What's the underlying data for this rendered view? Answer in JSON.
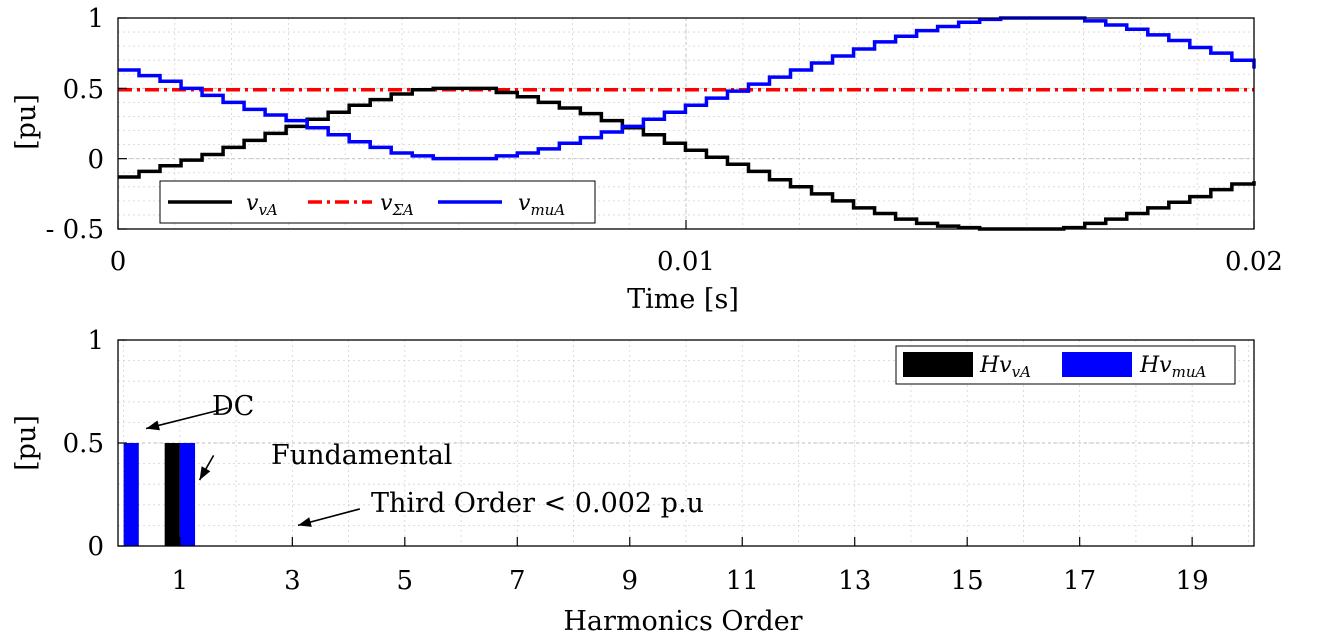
{
  "chart_data": [
    {
      "type": "line",
      "xlabel": "Time [s]",
      "ylabel": "[pu]",
      "xlim": [
        0,
        0.02
      ],
      "ylim": [
        -0.5,
        1
      ],
      "xticks": [
        0,
        0.01,
        0.02
      ],
      "xtick_labels": [
        "0",
        "0.01",
        "0.02"
      ],
      "yticks": [
        -0.5,
        0,
        0.5,
        1
      ],
      "ytick_labels": [
        "- 0.5",
        "0",
        "0.5",
        "1"
      ],
      "grid": true,
      "legend_position": "bottom-left",
      "series": [
        {
          "name": "v_vA",
          "legend_main": "v",
          "legend_sub": "vA",
          "color": "#000000",
          "style": "solid",
          "x": [
            0,
            0.00037,
            0.00074,
            0.00111,
            0.00148,
            0.00185,
            0.00222,
            0.00259,
            0.00296,
            0.00333,
            0.0037,
            0.00407,
            0.00444,
            0.00481,
            0.00518,
            0.00555,
            0.00592,
            0.00629,
            0.00666,
            0.00703,
            0.0074,
            0.00777,
            0.00814,
            0.00851,
            0.00888,
            0.00925,
            0.00962,
            0.00999,
            0.01036,
            0.01073,
            0.0111,
            0.01147,
            0.01184,
            0.01221,
            0.01258,
            0.01295,
            0.01332,
            0.01369,
            0.01406,
            0.01443,
            0.0148,
            0.01517,
            0.01554,
            0.01591,
            0.01628,
            0.01665,
            0.01702,
            0.01739,
            0.01776,
            0.01813,
            0.0185,
            0.01887,
            0.01924,
            0.01961,
            0.02
          ],
          "y": [
            -0.13,
            -0.09,
            -0.05,
            -0.01,
            0.03,
            0.08,
            0.13,
            0.18,
            0.23,
            0.28,
            0.33,
            0.38,
            0.42,
            0.46,
            0.49,
            0.5,
            0.5,
            0.5,
            0.47,
            0.44,
            0.4,
            0.36,
            0.32,
            0.27,
            0.22,
            0.17,
            0.11,
            0.06,
            0.01,
            -0.04,
            -0.09,
            -0.15,
            -0.2,
            -0.25,
            -0.3,
            -0.35,
            -0.39,
            -0.43,
            -0.46,
            -0.48,
            -0.49,
            -0.5,
            -0.5,
            -0.5,
            -0.5,
            -0.49,
            -0.46,
            -0.43,
            -0.39,
            -0.35,
            -0.31,
            -0.27,
            -0.22,
            -0.18,
            -0.16
          ]
        },
        {
          "name": "v_ΣA",
          "legend_main": "v",
          "legend_sub": "ΣA",
          "color": "#ff0000",
          "style": "dashdot",
          "x": [
            0,
            0.02
          ],
          "y": [
            0.49,
            0.49
          ]
        },
        {
          "name": "v_muA",
          "legend_main": "v",
          "legend_sub": "muA",
          "color": "#0000ff",
          "style": "solid",
          "x": [
            0,
            0.00037,
            0.00074,
            0.00111,
            0.00148,
            0.00185,
            0.00222,
            0.00259,
            0.00296,
            0.00333,
            0.0037,
            0.00407,
            0.00444,
            0.00481,
            0.00518,
            0.00555,
            0.00592,
            0.00629,
            0.00666,
            0.00703,
            0.0074,
            0.00777,
            0.00814,
            0.00851,
            0.00888,
            0.00925,
            0.00962,
            0.00999,
            0.01036,
            0.01073,
            0.0111,
            0.01147,
            0.01184,
            0.01221,
            0.01258,
            0.01295,
            0.01332,
            0.01369,
            0.01406,
            0.01443,
            0.0148,
            0.01517,
            0.01554,
            0.01591,
            0.01628,
            0.01665,
            0.01702,
            0.01739,
            0.01776,
            0.01813,
            0.0185,
            0.01887,
            0.01924,
            0.01961,
            0.02
          ],
          "y": [
            0.63,
            0.59,
            0.55,
            0.5,
            0.45,
            0.4,
            0.35,
            0.31,
            0.27,
            0.22,
            0.17,
            0.12,
            0.08,
            0.04,
            0.02,
            0.0,
            0.0,
            0.0,
            0.02,
            0.04,
            0.07,
            0.11,
            0.15,
            0.19,
            0.23,
            0.28,
            0.33,
            0.38,
            0.43,
            0.48,
            0.53,
            0.58,
            0.63,
            0.68,
            0.73,
            0.78,
            0.83,
            0.87,
            0.91,
            0.94,
            0.97,
            0.99,
            1.0,
            1.0,
            1.0,
            1.0,
            0.98,
            0.95,
            0.92,
            0.88,
            0.84,
            0.79,
            0.75,
            0.7,
            0.64
          ]
        }
      ]
    },
    {
      "type": "bar",
      "xlabel": "Harmonics Order",
      "ylabel": "[pu]",
      "xlim": [
        -0.1,
        20.1
      ],
      "ylim": [
        0,
        1
      ],
      "xticks": [
        1,
        3,
        5,
        7,
        9,
        11,
        13,
        15,
        17,
        19
      ],
      "xtick_labels": [
        "1",
        "3",
        "5",
        "7",
        "9",
        "11",
        "13",
        "15",
        "17",
        "19"
      ],
      "yticks": [
        0,
        0.5,
        1
      ],
      "ytick_labels": [
        "0",
        "0.5",
        "1"
      ],
      "grid": true,
      "legend_position": "top-right",
      "bar_width": 0.27,
      "series": [
        {
          "name": "Hv_vA",
          "legend_main": "Hv",
          "legend_sub": "vA",
          "color": "#000000",
          "x": [
            0,
            1,
            3
          ],
          "values": [
            0.0,
            0.5,
            0.001
          ]
        },
        {
          "name": "Hv_muA",
          "legend_main": "Hv",
          "legend_sub": "muA",
          "color": "#0000ff",
          "x": [
            0,
            1,
            3
          ],
          "values": [
            0.5,
            0.5,
            0.001
          ]
        }
      ],
      "annotations": [
        {
          "text": "DC",
          "x_from": 1.85,
          "y_from": 0.67,
          "x_to": 0.4,
          "y_to": 0.57
        },
        {
          "text": "Fundamental",
          "x_from": 1.6,
          "y_from": 0.44,
          "x_to": 1.35,
          "y_to": 0.32
        },
        {
          "text": "Third Order < 0.002 p.u",
          "x_from": 4.2,
          "y_from": 0.18,
          "x_to": 3.1,
          "y_to": 0.1
        }
      ]
    }
  ]
}
